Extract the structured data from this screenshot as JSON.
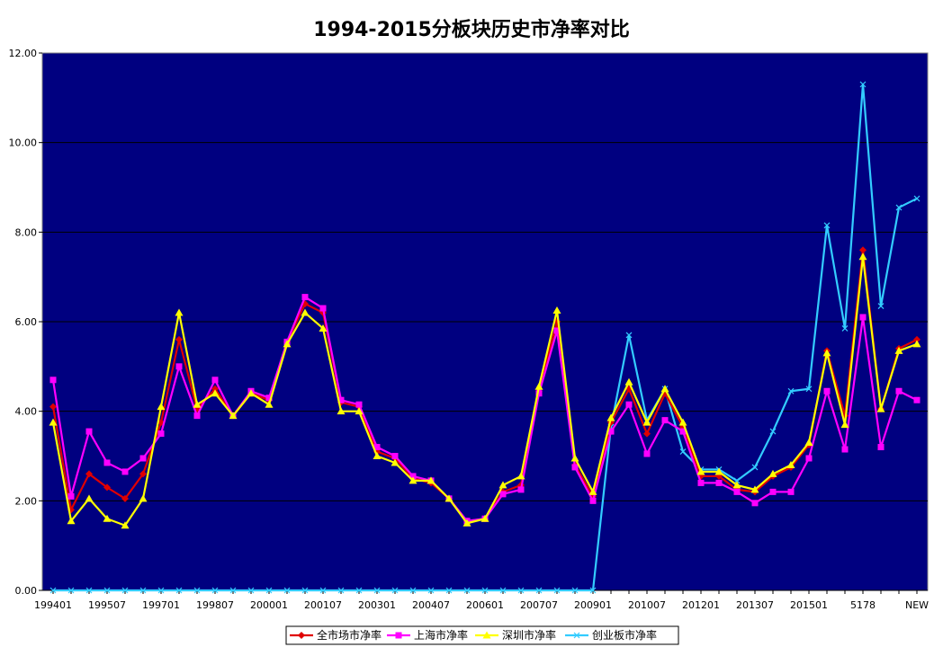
{
  "chart_data": {
    "type": "line",
    "title": "1994-2015分板块历史市净率对比",
    "xlabel": "",
    "ylabel": "",
    "ylim": [
      0,
      12
    ],
    "yticks": [
      "0.00",
      "2.00",
      "4.00",
      "6.00",
      "8.00",
      "10.00",
      "12.00"
    ],
    "xtick_labels": [
      "199401",
      "199507",
      "199701",
      "199807",
      "200001",
      "200107",
      "200301",
      "200407",
      "200601",
      "200707",
      "200901",
      "201007",
      "201201",
      "201307",
      "201501",
      "5178",
      "NEW"
    ],
    "grid": true,
    "legend_position": "bottom",
    "colors": {
      "plot_background": "#000080",
      "grid": "#000000",
      "quanshichang": "#e00000",
      "shanghai": "#ff00ff",
      "shenzhen": "#ffff00",
      "chuangye": "#33ccff"
    },
    "series": [
      {
        "name": "全市场市净率",
        "color_key": "quanshichang",
        "marker": "diamond",
        "values": [
          4.1,
          1.8,
          2.6,
          2.3,
          2.05,
          2.6,
          3.75,
          5.6,
          4.05,
          4.5,
          3.9,
          4.4,
          4.25,
          5.55,
          6.4,
          6.2,
          4.2,
          4.1,
          3.1,
          2.95,
          2.5,
          2.4,
          2.05,
          1.55,
          1.6,
          2.2,
          2.35,
          4.45,
          6.0,
          2.8,
          2.1,
          3.75,
          4.5,
          3.5,
          4.4,
          3.65,
          2.55,
          2.55,
          2.25,
          2.2,
          2.55,
          2.75,
          3.25,
          5.35,
          3.9,
          7.6,
          4.05,
          5.4,
          5.6
        ]
      },
      {
        "name": "上海市净率",
        "color_key": "shanghai",
        "marker": "square",
        "values": [
          4.7,
          2.1,
          3.55,
          2.85,
          2.65,
          2.95,
          3.5,
          5.0,
          3.9,
          4.7,
          3.9,
          4.45,
          4.3,
          5.55,
          6.55,
          6.3,
          4.25,
          4.15,
          3.2,
          3.0,
          2.55,
          2.45,
          2.05,
          1.55,
          1.6,
          2.15,
          2.25,
          4.4,
          5.8,
          2.75,
          2.0,
          3.55,
          4.15,
          3.05,
          3.8,
          3.55,
          2.4,
          2.4,
          2.2,
          1.95,
          2.2,
          2.2,
          2.95,
          4.45,
          3.15,
          6.1,
          3.2,
          4.45,
          4.25
        ]
      },
      {
        "name": "深圳市净率",
        "color_key": "shenzhen",
        "marker": "triangle",
        "values": [
          3.75,
          1.55,
          2.05,
          1.6,
          1.45,
          2.05,
          4.1,
          6.2,
          4.15,
          4.4,
          3.9,
          4.4,
          4.15,
          5.5,
          6.2,
          5.85,
          4.0,
          4.0,
          3.0,
          2.85,
          2.45,
          2.45,
          2.05,
          1.5,
          1.6,
          2.35,
          2.55,
          4.55,
          6.25,
          2.95,
          2.2,
          3.85,
          4.65,
          3.75,
          4.5,
          3.75,
          2.65,
          2.65,
          2.35,
          2.25,
          2.6,
          2.8,
          3.3,
          5.3,
          3.7,
          7.45,
          4.05,
          5.35,
          5.5
        ]
      },
      {
        "name": "创业板市净率",
        "color_key": "chuangye",
        "marker": "x",
        "values": [
          0,
          0,
          0,
          0,
          0,
          0,
          0,
          0,
          0,
          0,
          0,
          0,
          0,
          0,
          0,
          0,
          0,
          0,
          0,
          0,
          0,
          0,
          0,
          0,
          0,
          0,
          0,
          0,
          0,
          0,
          0,
          3.65,
          5.7,
          3.8,
          4.5,
          3.1,
          2.7,
          2.7,
          2.45,
          2.75,
          3.55,
          4.45,
          4.5,
          8.15,
          5.85,
          11.3,
          6.35,
          8.55,
          8.75
        ]
      }
    ]
  }
}
